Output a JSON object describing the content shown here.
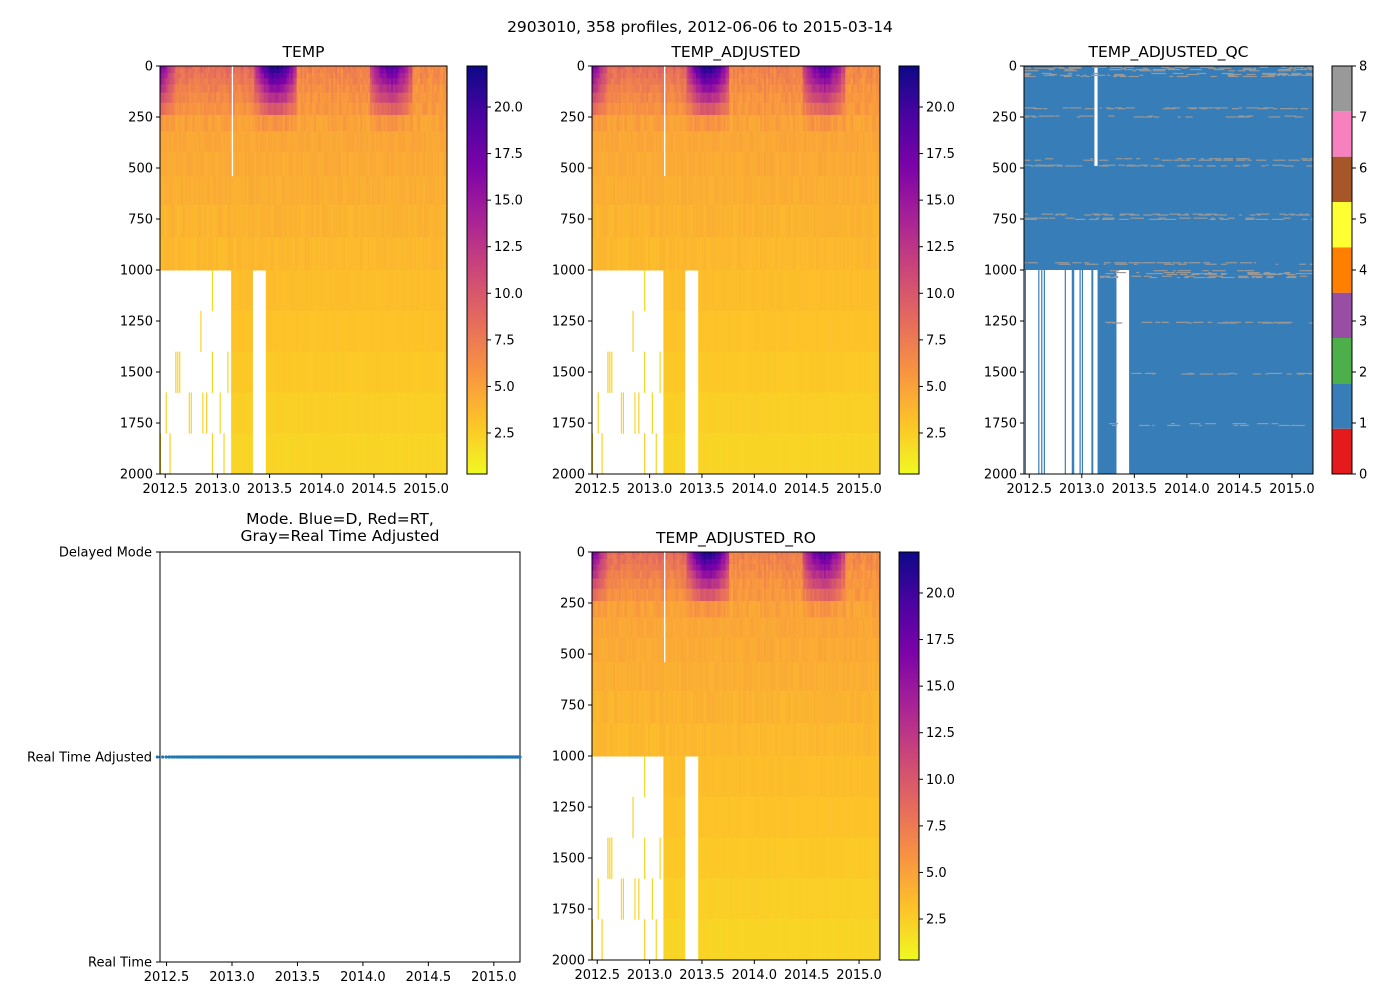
{
  "figure": {
    "suptitle": "2903010, 358 profiles, 2012-06-06 to 2015-03-14"
  },
  "chart_data": [
    {
      "id": "temp",
      "type": "heatmap",
      "title": "TEMP",
      "xlabel": "",
      "ylabel": "",
      "xlim": [
        2012.45,
        2015.2
      ],
      "ylim": [
        2000,
        0
      ],
      "y_inverted": true,
      "xticks": [
        2012.5,
        2013.0,
        2013.5,
        2014.0,
        2014.5,
        2015.0
      ],
      "xtick_labels": [
        "2012.5",
        "2013.0",
        "2013.5",
        "2014.0",
        "2014.5",
        "2015.0"
      ],
      "yticks": [
        0,
        250,
        500,
        750,
        1000,
        1250,
        1500,
        1750,
        2000
      ],
      "ytick_labels": [
        "0",
        "250",
        "500",
        "750",
        "1000",
        "1250",
        "1500",
        "1750",
        "2000"
      ],
      "colormap": "plasma_r",
      "colorbar": {
        "range": [
          0.3,
          22.2
        ],
        "ticks": [
          2.5,
          5.0,
          7.5,
          10.0,
          12.5,
          15.0,
          17.5,
          20.0
        ],
        "tick_labels": [
          "2.5",
          "5.0",
          "7.5",
          "10.0",
          "12.5",
          "15.0",
          "17.5",
          "20.0"
        ]
      },
      "features": {
        "surface_warm_periods": [
          [
            2012.45,
            2012.6,
            21
          ],
          [
            2013.4,
            2013.7,
            22
          ],
          [
            2014.5,
            2014.8,
            20
          ]
        ],
        "shallow_profiles_period": [
          2012.45,
          2013.1
        ],
        "shallow_profile_max_depth": 1000,
        "gap_periods": [
          [
            2013.12,
            2013.15,
            0,
            490
          ],
          [
            2013.33,
            2013.45,
            970,
            2000
          ]
        ],
        "typical_temperatures": {
          "surface_early": 8.5,
          "depth_500": 4.5,
          "depth_1000": 3.5,
          "depth_2000": 2.0
        }
      }
    },
    {
      "id": "temp_adjusted",
      "type": "heatmap",
      "title": "TEMP_ADJUSTED",
      "xlim": [
        2012.45,
        2015.2
      ],
      "ylim": [
        2000,
        0
      ],
      "y_inverted": true,
      "xticks": [
        2012.5,
        2013.0,
        2013.5,
        2014.0,
        2014.5,
        2015.0
      ],
      "xtick_labels": [
        "2012.5",
        "2013.0",
        "2013.5",
        "2014.0",
        "2014.5",
        "2015.0"
      ],
      "yticks": [
        0,
        250,
        500,
        750,
        1000,
        1250,
        1500,
        1750,
        2000
      ],
      "ytick_labels": [
        "0",
        "250",
        "500",
        "750",
        "1000",
        "1250",
        "1500",
        "1750",
        "2000"
      ],
      "colormap": "plasma_r",
      "colorbar": {
        "range": [
          0.3,
          22.2
        ],
        "ticks": [
          2.5,
          5.0,
          7.5,
          10.0,
          12.5,
          15.0,
          17.5,
          20.0
        ],
        "tick_labels": [
          "2.5",
          "5.0",
          "7.5",
          "10.0",
          "12.5",
          "15.0",
          "17.5",
          "20.0"
        ]
      }
    },
    {
      "id": "temp_adjusted_qc",
      "type": "heatmap",
      "title": "TEMP_ADJUSTED_QC",
      "xlim": [
        2012.45,
        2015.2
      ],
      "ylim": [
        2000,
        0
      ],
      "y_inverted": true,
      "xticks": [
        2012.5,
        2013.0,
        2013.5,
        2014.0,
        2014.5,
        2015.0
      ],
      "xtick_labels": [
        "2012.5",
        "2013.0",
        "2013.5",
        "2014.0",
        "2014.5",
        "2015.0"
      ],
      "yticks": [
        0,
        250,
        500,
        750,
        1000,
        1250,
        1500,
        1750,
        2000
      ],
      "ytick_labels": [
        "0",
        "250",
        "500",
        "750",
        "1000",
        "1250",
        "1500",
        "1750",
        "2000"
      ],
      "colormap": "Set1 (discrete)",
      "dominant_value": 1,
      "secondary_value": 8,
      "qc8_depth_bands": [
        0,
        30,
        200,
        240,
        450,
        480,
        720,
        740,
        960,
        1000,
        1250,
        1500,
        1750
      ],
      "colorbar": {
        "range": [
          0,
          8
        ],
        "ticks": [
          0,
          1,
          2,
          3,
          4,
          5,
          6,
          7,
          8
        ],
        "tick_labels": [
          "0",
          "1",
          "2",
          "3",
          "4",
          "5",
          "6",
          "7",
          "8"
        ],
        "colors": [
          "#e41a1c",
          "#377eb8",
          "#4daf4a",
          "#984ea3",
          "#ff7f00",
          "#ffff33",
          "#a65628",
          "#f781bf",
          "#999999"
        ]
      }
    },
    {
      "id": "mode",
      "type": "scatter",
      "title": "Mode. Blue=D, Red=RT,\nGray=Real Time Adjusted",
      "title_lines": [
        "Mode. Blue=D, Red=RT,",
        "Gray=Real Time Adjusted"
      ],
      "xlim": [
        2012.45,
        2015.2
      ],
      "ylim": [
        0,
        2
      ],
      "xticks": [
        2012.5,
        2013.0,
        2013.5,
        2014.0,
        2014.5,
        2015.0
      ],
      "xtick_labels": [
        "2012.5",
        "2013.0",
        "2013.5",
        "2014.0",
        "2014.5",
        "2015.0"
      ],
      "yticks": [
        0,
        1,
        2
      ],
      "ytick_labels": [
        "Real Time",
        "Real Time Adjusted",
        "Delayed Mode"
      ],
      "series": [
        {
          "name": "profiles",
          "y": 1,
          "color": "#1f77b4",
          "x_start": 2012.43,
          "x_end": 2015.2,
          "count": 358,
          "dense_until": 2013.12
        }
      ]
    },
    {
      "id": "temp_adjusted_ro",
      "type": "heatmap",
      "title": "TEMP_ADJUSTED_RO",
      "xlim": [
        2012.45,
        2015.2
      ],
      "ylim": [
        2000,
        0
      ],
      "y_inverted": true,
      "xticks": [
        2012.5,
        2013.0,
        2013.5,
        2014.0,
        2014.5,
        2015.0
      ],
      "xtick_labels": [
        "2012.5",
        "2013.0",
        "2013.5",
        "2014.0",
        "2014.5",
        "2015.0"
      ],
      "yticks": [
        0,
        250,
        500,
        750,
        1000,
        1250,
        1500,
        1750,
        2000
      ],
      "ytick_labels": [
        "0",
        "250",
        "500",
        "750",
        "1000",
        "1250",
        "1500",
        "1750",
        "2000"
      ],
      "colormap": "plasma_r",
      "colorbar": {
        "range": [
          0.3,
          22.2
        ],
        "ticks": [
          2.5,
          5.0,
          7.5,
          10.0,
          12.5,
          15.0,
          17.5,
          20.0
        ],
        "tick_labels": [
          "2.5",
          "5.0",
          "7.5",
          "10.0",
          "12.5",
          "15.0",
          "17.5",
          "20.0"
        ]
      }
    }
  ]
}
